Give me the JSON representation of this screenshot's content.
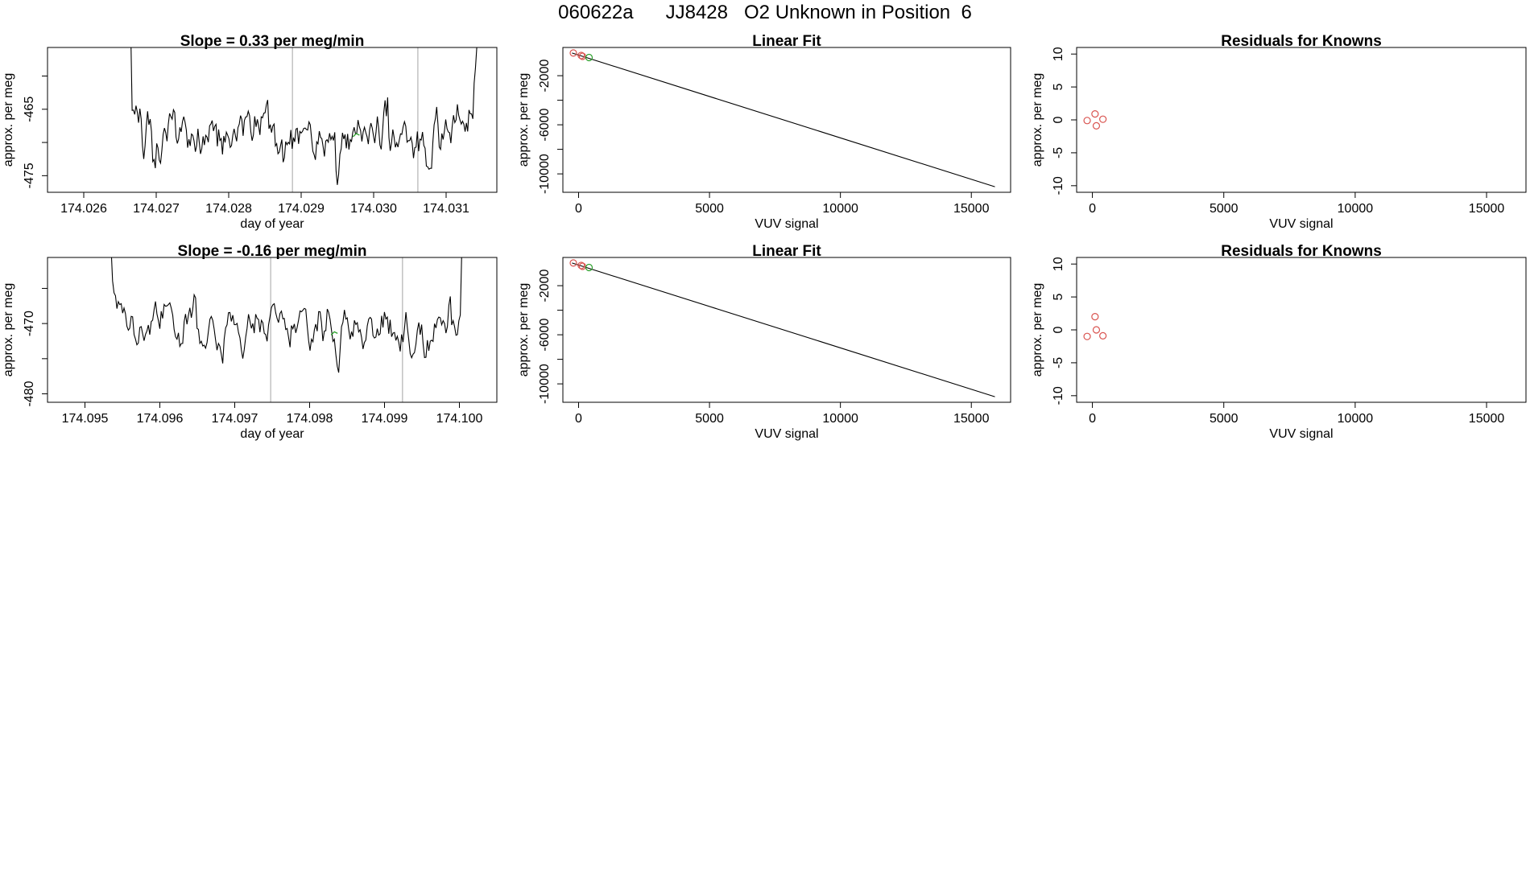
{
  "page": {
    "title": "060622a      JJ8428   O2 Unknown in Position  6"
  },
  "colors": {
    "line": "#000000",
    "known_point": "#d9534f",
    "unknown_point": "#2ca02c",
    "marker_line": "#bdbdbd",
    "frame": "#000000"
  },
  "chart_data": [
    {
      "id": "ts-1",
      "type": "line",
      "title": "Slope =  0.33  per meg/min",
      "xlabel": "day of year",
      "ylabel": "approx. per meg",
      "xlim": [
        174.0255,
        174.0317
      ],
      "ylim": [
        -477.5,
        -455.7
      ],
      "xticks": [
        174.026,
        174.027,
        174.028,
        174.029,
        174.03,
        174.031
      ],
      "xtick_labels": [
        "174.026",
        "174.027",
        "174.028",
        "174.029",
        "174.030",
        "174.031"
      ],
      "yticks": [
        -475,
        -470,
        -465,
        -460
      ],
      "ytick_labels": [
        "-475",
        "",
        "-465",
        ""
      ],
      "vlines": [
        174.02888,
        174.03061
      ],
      "series_start": 174.02665,
      "series_end": 174.03144,
      "series": [
        -453.99,
        -465.17,
        -465.12,
        -465.78,
        -464.46,
        -465.42,
        -467.02,
        -464.92,
        -466.45,
        -470.46,
        -472.48,
        -470.55,
        -467.55,
        -465.31,
        -467.34,
        -466.48,
        -468.33,
        -472.88,
        -472.56,
        -473.87,
        -470.15,
        -470.81,
        -472.65,
        -473.1,
        -471.19,
        -468.78,
        -467.82,
        -468.51,
        -469.82,
        -467.25,
        -465.62,
        -466.1,
        -466.49,
        -465.07,
        -465.47,
        -469.18,
        -470.15,
        -469.48,
        -467.73,
        -468.4,
        -466.87,
        -466.11,
        -466.95,
        -468.14,
        -470.79,
        -469.52,
        -470.53,
        -468.73,
        -468.93,
        -469.79,
        -471.39,
        -470.47,
        -467.95,
        -469.94,
        -471.72,
        -470.92,
        -469.08,
        -470.39,
        -468.93,
        -469.19,
        -469.95,
        -467.49,
        -467.22,
        -466.7,
        -468.27,
        -467.57,
        -467.27,
        -470.59,
        -468.05,
        -469.7,
        -469.41,
        -471.8,
        -469.02,
        -469.99,
        -468.44,
        -468.89,
        -469.45,
        -470.74,
        -470.46,
        -468.93,
        -467.95,
        -468.95,
        -469.82,
        -467.78,
        -467.25,
        -465.96,
        -466.53,
        -469.0,
        -466.69,
        -466.16,
        -466.11,
        -465.29,
        -465.94,
        -468.4,
        -469.74,
        -468.88,
        -466.07,
        -467.65,
        -466.51,
        -467.55,
        -468.87,
        -466.14,
        -466.28,
        -465.59,
        -465.54,
        -464.31,
        -463.61,
        -467.95,
        -467.31,
        -468.51,
        -467.52,
        -467.23,
        -470.53,
        -470.18,
        -471.7,
        -471.46,
        -470.46,
        -469.56,
        -472.97,
        -472.29,
        -469.87,
        -470.34,
        -469.98,
        -470.22,
        -468.13,
        -470.95,
        -469.26,
        -469.92,
        -467.98,
        -467.87,
        -470.21,
        -468.35,
        -468.59,
        -468.33,
        -467.88,
        -467.82,
        -468.04,
        -468.12,
        -466.9,
        -467.31,
        -469.36,
        -471.31,
        -471.84,
        -472.61,
        -469.91,
        -470.21,
        -468.29,
        -469.24,
        -469.43,
        -470.68,
        -472.11,
        -469.78,
        -469.59,
        -469.96,
        -468.61,
        -469.58,
        -469.08,
        -469.7,
        -468.47,
        -474.21,
        -476.39,
        -474.85,
        -471.77,
        -470.95,
        -468.55,
        -469.48,
        -468.8,
        -470.88,
        -468.71,
        -471.06,
        -469.57,
        -469.85,
        -468.47,
        -467.72,
        -468.67,
        -468.62,
        -466.63,
        -467.6,
        -468.21,
        -469.84,
        -468.42,
        -467.72,
        -468.48,
        -469.12,
        -470.24,
        -468.08,
        -467.09,
        -467.8,
        -468.97,
        -470.09,
        -468.38,
        -466.09,
        -467.83,
        -470.38,
        -471.03,
        -468.47,
        -465.47,
        -463.66,
        -466.05,
        -463.22,
        -469.26,
        -471.25,
        -470.05,
        -468.05,
        -469.23,
        -470.73,
        -470.06,
        -470.71,
        -469.68,
        -468.69,
        -468.79,
        -467.67,
        -466.87,
        -467.56,
        -469.96,
        -469.71,
        -469.72,
        -469.22,
        -470.13,
        -472.37,
        -470.78,
        -470.7,
        -468.34,
        -471.32,
        -469.51,
        -469.64,
        -468.43,
        -470.44,
        -470.88,
        -473.56,
        -473.66,
        -474.03,
        -473.89,
        -473.89,
        -470.03,
        -467.35,
        -466.41,
        -464.65,
        -467.3,
        -470.71,
        -471.05,
        -468.65,
        -469.56,
        -468.29,
        -466.54,
        -467.91,
        -468.41,
        -468.54,
        -470.1,
        -467.63,
        -465.9,
        -467.0,
        -466.6,
        -464.26,
        -465.88,
        -466.63,
        -467.23,
        -466.79,
        -467.24,
        -468.37,
        -467.06,
        -468.34,
        -465.11,
        -465.69,
        -465.69,
        -466.44,
        -461.06,
        -458.86,
        -455.86,
        -450.22
      ],
      "unknown_points": [
        {
          "x": 174.02976,
          "y": -468.9
        }
      ]
    },
    {
      "id": "fit-1",
      "type": "scatter",
      "title": "Linear Fit",
      "xlabel": "VUV signal",
      "ylabel": "approx. per meg",
      "xlim": [
        -600,
        16500
      ],
      "ylim": [
        -11500,
        300
      ],
      "xticks": [
        0,
        5000,
        10000,
        15000
      ],
      "xtick_labels": [
        "0",
        "5000",
        "10000",
        "15000"
      ],
      "yticks": [
        -10000,
        -8000,
        -6000,
        -4000,
        -2000
      ],
      "ytick_labels": [
        "-10000",
        "",
        "-6000",
        "",
        "-2000"
      ],
      "fit_line": {
        "x": [
          -250,
          15900
        ],
        "y": [
          -150,
          -11050
        ]
      },
      "known_points": [
        {
          "x": -200,
          "y": -150
        },
        {
          "x": 100,
          "y": -350
        },
        {
          "x": 150,
          "y": -420
        }
      ],
      "unknown_points": [
        {
          "x": 400,
          "y": -520
        }
      ]
    },
    {
      "id": "res-1",
      "type": "scatter",
      "title": "Residuals for Knowns",
      "xlabel": "VUV signal",
      "ylabel": "approx. per meg",
      "xlim": [
        -600,
        16500
      ],
      "ylim": [
        -11,
        11
      ],
      "xticks": [
        0,
        5000,
        10000,
        15000
      ],
      "xtick_labels": [
        "0",
        "5000",
        "10000",
        "15000"
      ],
      "yticks": [
        -10,
        -5,
        0,
        5,
        10
      ],
      "ytick_labels": [
        "-10",
        "-5",
        "0",
        "5",
        "10"
      ],
      "known_points": [
        {
          "x": -200,
          "y": -0.1
        },
        {
          "x": 100,
          "y": 0.9
        },
        {
          "x": 150,
          "y": -0.9
        },
        {
          "x": 400,
          "y": 0.1
        }
      ]
    },
    {
      "id": "ts-2",
      "type": "line",
      "title": "Slope =  -0.16  per meg/min",
      "xlabel": "day of year",
      "ylabel": "approx. per meg",
      "xlim": [
        174.0945,
        174.1005
      ],
      "ylim": [
        -481.2,
        -460.6
      ],
      "xticks": [
        174.095,
        174.096,
        174.097,
        174.098,
        174.099,
        174.1
      ],
      "xtick_labels": [
        "174.095",
        "174.096",
        "174.097",
        "174.098",
        "174.099",
        "174.100"
      ],
      "yticks": [
        -480,
        -475,
        -470,
        -465
      ],
      "ytick_labels": [
        "-480",
        "",
        "-470",
        ""
      ],
      "vlines": [
        174.09748,
        174.09924
      ],
      "series_start": 174.09535,
      "series_end": 174.10005,
      "series": [
        -459.31,
        -463.94,
        -465.63,
        -466.04,
        -467.88,
        -466.88,
        -467.31,
        -467.17,
        -468.52,
        -467.79,
        -468.6,
        -470.38,
        -470.95,
        -470.65,
        -468.98,
        -469.05,
        -471.58,
        -472.24,
        -473.02,
        -472.77,
        -470.56,
        -470.44,
        -471.44,
        -472.45,
        -471.53,
        -471.05,
        -470.21,
        -471.58,
        -469.73,
        -469.52,
        -467.99,
        -466.86,
        -468.64,
        -469.57,
        -470.74,
        -468.24,
        -469.28,
        -467.28,
        -467.54,
        -467.49,
        -467.31,
        -467.06,
        -467.82,
        -468.8,
        -470.82,
        -471.88,
        -472.23,
        -471.32,
        -473.26,
        -472.84,
        -472.83,
        -469.73,
        -468.64,
        -470.1,
        -468.82,
        -467.76,
        -469.17,
        -468.02,
        -465.91,
        -466.35,
        -470.68,
        -470.83,
        -472.82,
        -472.51,
        -473.19,
        -473.07,
        -473.51,
        -472.71,
        -471.01,
        -469.38,
        -469.0,
        -469.55,
        -470.82,
        -472.41,
        -473.8,
        -472.83,
        -473.23,
        -474.43,
        -475.67,
        -472.21,
        -470.61,
        -470.17,
        -468.46,
        -468.43,
        -469.7,
        -468.81,
        -470.16,
        -470.17,
        -469.99,
        -471.29,
        -472.05,
        -473.7,
        -474.98,
        -473.71,
        -471.94,
        -470.68,
        -468.68,
        -469.66,
        -470.68,
        -469.98,
        -471.37,
        -468.67,
        -469.26,
        -469.41,
        -471.23,
        -469.54,
        -469.88,
        -471.42,
        -471.55,
        -472.53,
        -470.19,
        -469.02,
        -467.72,
        -467.34,
        -467.18,
        -468.49,
        -469.31,
        -469.86,
        -468.57,
        -468.23,
        -469.33,
        -469.26,
        -470.84,
        -470.71,
        -472.0,
        -473.37,
        -470.28,
        -470.75,
        -470.06,
        -471.33,
        -470.56,
        -469.49,
        -468.21,
        -468.32,
        -468.11,
        -467.85,
        -467.96,
        -470.35,
        -472.47,
        -473.85,
        -472.23,
        -472.6,
        -470.89,
        -470.09,
        -471.09,
        -468.3,
        -468.32,
        -469.81,
        -472.49,
        -471.06,
        -471.01,
        -467.94,
        -468.4,
        -469.41,
        -470.98,
        -472.55,
        -472.23,
        -474.32,
        -476.07,
        -476.98,
        -473.82,
        -470.45,
        -469.81,
        -468.06,
        -469.36,
        -469.2,
        -470.79,
        -472.24,
        -471.14,
        -471.87,
        -469.55,
        -470.13,
        -469.88,
        -471.19,
        -470.89,
        -471.99,
        -473.62,
        -472.7,
        -472.34,
        -470.33,
        -469.35,
        -469.13,
        -469.37,
        -471.71,
        -472.06,
        -471.92,
        -470.73,
        -471.65,
        -471.45,
        -468.91,
        -470.56,
        -468.36,
        -469.35,
        -469.08,
        -471.45,
        -469.46,
        -471.87,
        -471.37,
        -471.28,
        -472.41,
        -471.82,
        -472.66,
        -473.97,
        -471.55,
        -472.64,
        -470.7,
        -468.38,
        -470.59,
        -472.28,
        -474.29,
        -474.87,
        -474.36,
        -474.14,
        -472.94,
        -470.94,
        -469.85,
        -471.6,
        -470.15,
        -472.87,
        -474.84,
        -474.79,
        -472.37,
        -473.88,
        -472.51,
        -472.37,
        -472.54,
        -470.02,
        -470.64,
        -469.43,
        -469.08,
        -469.17,
        -470.18,
        -469.58,
        -470.01,
        -471.36,
        -470.43,
        -467.42,
        -466.14,
        -470.21,
        -469.58,
        -470.43,
        -471.67,
        -471.57,
        -469.62,
        -468.79,
        -459.81,
        -456.96
      ],
      "unknown_points": [
        {
          "x": 174.09833,
          "y": -471.4
        }
      ]
    },
    {
      "id": "fit-2",
      "type": "scatter",
      "title": "Linear Fit",
      "xlabel": "VUV signal",
      "ylabel": "approx. per meg",
      "xlim": [
        -600,
        16500
      ],
      "ylim": [
        -11500,
        300
      ],
      "xticks": [
        0,
        5000,
        10000,
        15000
      ],
      "xtick_labels": [
        "0",
        "5000",
        "10000",
        "15000"
      ],
      "yticks": [
        -10000,
        -8000,
        -6000,
        -4000,
        -2000
      ],
      "ytick_labels": [
        "-10000",
        "",
        "-6000",
        "",
        "-2000"
      ],
      "fit_line": {
        "x": [
          -250,
          15900
        ],
        "y": [
          -150,
          -11050
        ]
      },
      "known_points": [
        {
          "x": -200,
          "y": -150
        },
        {
          "x": 100,
          "y": -350
        },
        {
          "x": 150,
          "y": -420
        }
      ],
      "unknown_points": [
        {
          "x": 400,
          "y": -520
        }
      ]
    },
    {
      "id": "res-2",
      "type": "scatter",
      "title": "Residuals for Knowns",
      "xlabel": "VUV signal",
      "ylabel": "approx. per meg",
      "xlim": [
        -600,
        16500
      ],
      "ylim": [
        -11,
        11
      ],
      "xticks": [
        0,
        5000,
        10000,
        15000
      ],
      "xtick_labels": [
        "0",
        "5000",
        "10000",
        "15000"
      ],
      "yticks": [
        -10,
        -5,
        0,
        5,
        10
      ],
      "ytick_labels": [
        "-10",
        "-5",
        "0",
        "5",
        "10"
      ],
      "known_points": [
        {
          "x": -200,
          "y": -1.0
        },
        {
          "x": 100,
          "y": 2.0
        },
        {
          "x": 150,
          "y": 0.0
        },
        {
          "x": 400,
          "y": -0.9
        }
      ]
    }
  ]
}
